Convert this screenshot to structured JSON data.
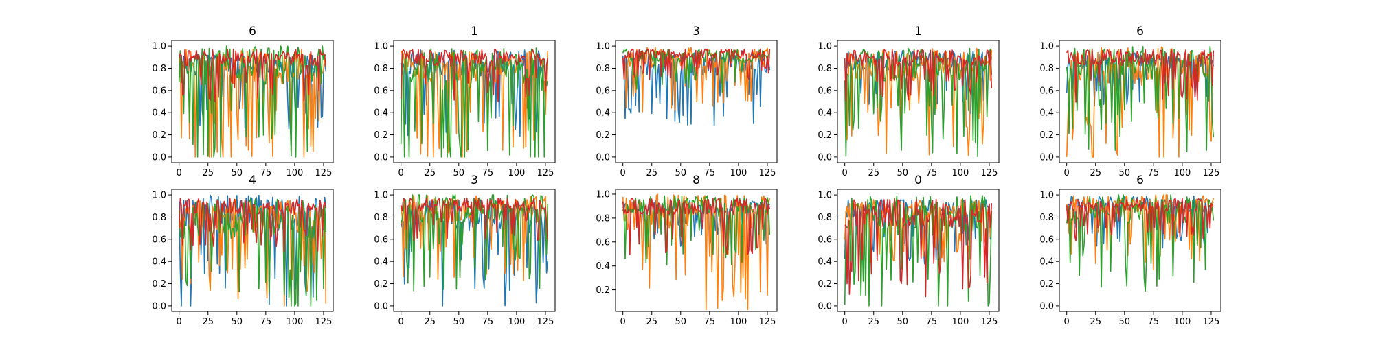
{
  "chart_data": {
    "type": "line",
    "layout": {
      "rows": 2,
      "cols": 5
    },
    "colors": [
      "#1f77b4",
      "#ff7f0e",
      "#2ca02c",
      "#d62728"
    ],
    "x_points": 128,
    "x_ticks": [
      "0",
      "25",
      "50",
      "75",
      "100",
      "125"
    ],
    "xlim": [
      -6.35,
      133.35
    ],
    "subplots": [
      {
        "title": "6",
        "ylim": [
          -0.05,
          1.05
        ],
        "y_ticks": [
          "0.0",
          "0.2",
          "0.4",
          "0.6",
          "0.8",
          "1.0"
        ],
        "series": [
          {
            "base": 0.8,
            "spread": 0.35,
            "seed": 11
          },
          {
            "base": 0.78,
            "spread": 0.55,
            "seed": 12
          },
          {
            "base": 0.8,
            "spread": 0.6,
            "seed": 13
          },
          {
            "base": 0.88,
            "spread": 0.25,
            "seed": 14
          }
        ]
      },
      {
        "title": "1",
        "ylim": [
          -0.05,
          1.05
        ],
        "y_ticks": [
          "0.0",
          "0.2",
          "0.4",
          "0.6",
          "0.8",
          "1.0"
        ],
        "series": [
          {
            "base": 0.82,
            "spread": 0.4,
            "seed": 21
          },
          {
            "base": 0.78,
            "spread": 0.5,
            "seed": 22
          },
          {
            "base": 0.75,
            "spread": 0.65,
            "seed": 23
          },
          {
            "base": 0.88,
            "spread": 0.25,
            "seed": 24
          }
        ]
      },
      {
        "title": "3",
        "ylim": [
          -0.05,
          1.05
        ],
        "y_ticks": [
          "0.0",
          "0.2",
          "0.4",
          "0.6",
          "0.8",
          "1.0"
        ],
        "series": [
          {
            "base": 0.82,
            "spread": 0.35,
            "seed": 31
          },
          {
            "base": 0.88,
            "spread": 0.3,
            "seed": 32
          },
          {
            "base": 0.9,
            "spread": 0.2,
            "seed": 33
          },
          {
            "base": 0.92,
            "spread": 0.15,
            "seed": 34
          }
        ]
      },
      {
        "title": "1",
        "ylim": [
          -0.05,
          1.05
        ],
        "y_ticks": [
          "0.0",
          "0.2",
          "0.4",
          "0.6",
          "0.8",
          "1.0"
        ],
        "series": [
          {
            "base": 0.85,
            "spread": 0.3,
            "seed": 41
          },
          {
            "base": 0.8,
            "spread": 0.5,
            "seed": 42
          },
          {
            "base": 0.8,
            "spread": 0.5,
            "seed": 43
          },
          {
            "base": 0.88,
            "spread": 0.25,
            "seed": 44
          }
        ]
      },
      {
        "title": "6",
        "ylim": [
          -0.05,
          1.05
        ],
        "y_ticks": [
          "0.0",
          "0.2",
          "0.4",
          "0.6",
          "0.8",
          "1.0"
        ],
        "series": [
          {
            "base": 0.85,
            "spread": 0.25,
            "seed": 51
          },
          {
            "base": 0.78,
            "spread": 0.6,
            "seed": 52
          },
          {
            "base": 0.82,
            "spread": 0.5,
            "seed": 53
          },
          {
            "base": 0.88,
            "spread": 0.25,
            "seed": 54
          }
        ]
      },
      {
        "title": "4",
        "ylim": [
          -0.05,
          1.05
        ],
        "y_ticks": [
          "0.0",
          "0.2",
          "0.4",
          "0.6",
          "0.8",
          "1.0"
        ],
        "series": [
          {
            "base": 0.8,
            "spread": 0.55,
            "seed": 61
          },
          {
            "base": 0.78,
            "spread": 0.5,
            "seed": 62
          },
          {
            "base": 0.75,
            "spread": 0.6,
            "seed": 63
          },
          {
            "base": 0.88,
            "spread": 0.25,
            "seed": 64
          }
        ]
      },
      {
        "title": "3",
        "ylim": [
          -0.05,
          1.05
        ],
        "y_ticks": [
          "0.0",
          "0.2",
          "0.4",
          "0.6",
          "0.8",
          "1.0"
        ],
        "series": [
          {
            "base": 0.78,
            "spread": 0.5,
            "seed": 71
          },
          {
            "base": 0.85,
            "spread": 0.4,
            "seed": 72
          },
          {
            "base": 0.85,
            "spread": 0.45,
            "seed": 73
          },
          {
            "base": 0.9,
            "spread": 0.2,
            "seed": 74
          }
        ]
      },
      {
        "title": "8",
        "ylim": [
          0.02,
          1.04
        ],
        "y_ticks": [
          "0.2",
          "0.4",
          "0.6",
          "0.8",
          "1.0"
        ],
        "series": [
          {
            "base": 0.88,
            "spread": 0.2,
            "seed": 81
          },
          {
            "base": 0.82,
            "spread": 0.5,
            "seed": 82
          },
          {
            "base": 0.88,
            "spread": 0.3,
            "seed": 83
          },
          {
            "base": 0.88,
            "spread": 0.25,
            "seed": 84
          }
        ]
      },
      {
        "title": "0",
        "ylim": [
          -0.05,
          1.05
        ],
        "y_ticks": [
          "0.0",
          "0.2",
          "0.4",
          "0.6",
          "0.8",
          "1.0"
        ],
        "series": [
          {
            "base": 0.85,
            "spread": 0.3,
            "seed": 91
          },
          {
            "base": 0.85,
            "spread": 0.3,
            "seed": 92
          },
          {
            "base": 0.78,
            "spread": 0.6,
            "seed": 93
          },
          {
            "base": 0.8,
            "spread": 0.45,
            "seed": 94
          }
        ]
      },
      {
        "title": "6",
        "ylim": [
          -0.05,
          1.05
        ],
        "y_ticks": [
          "0.0",
          "0.2",
          "0.4",
          "0.6",
          "0.8",
          "1.0"
        ],
        "series": [
          {
            "base": 0.9,
            "spread": 0.25,
            "seed": 101
          },
          {
            "base": 0.88,
            "spread": 0.35,
            "seed": 102
          },
          {
            "base": 0.85,
            "spread": 0.45,
            "seed": 103
          },
          {
            "base": 0.9,
            "spread": 0.2,
            "seed": 104
          }
        ]
      }
    ]
  }
}
